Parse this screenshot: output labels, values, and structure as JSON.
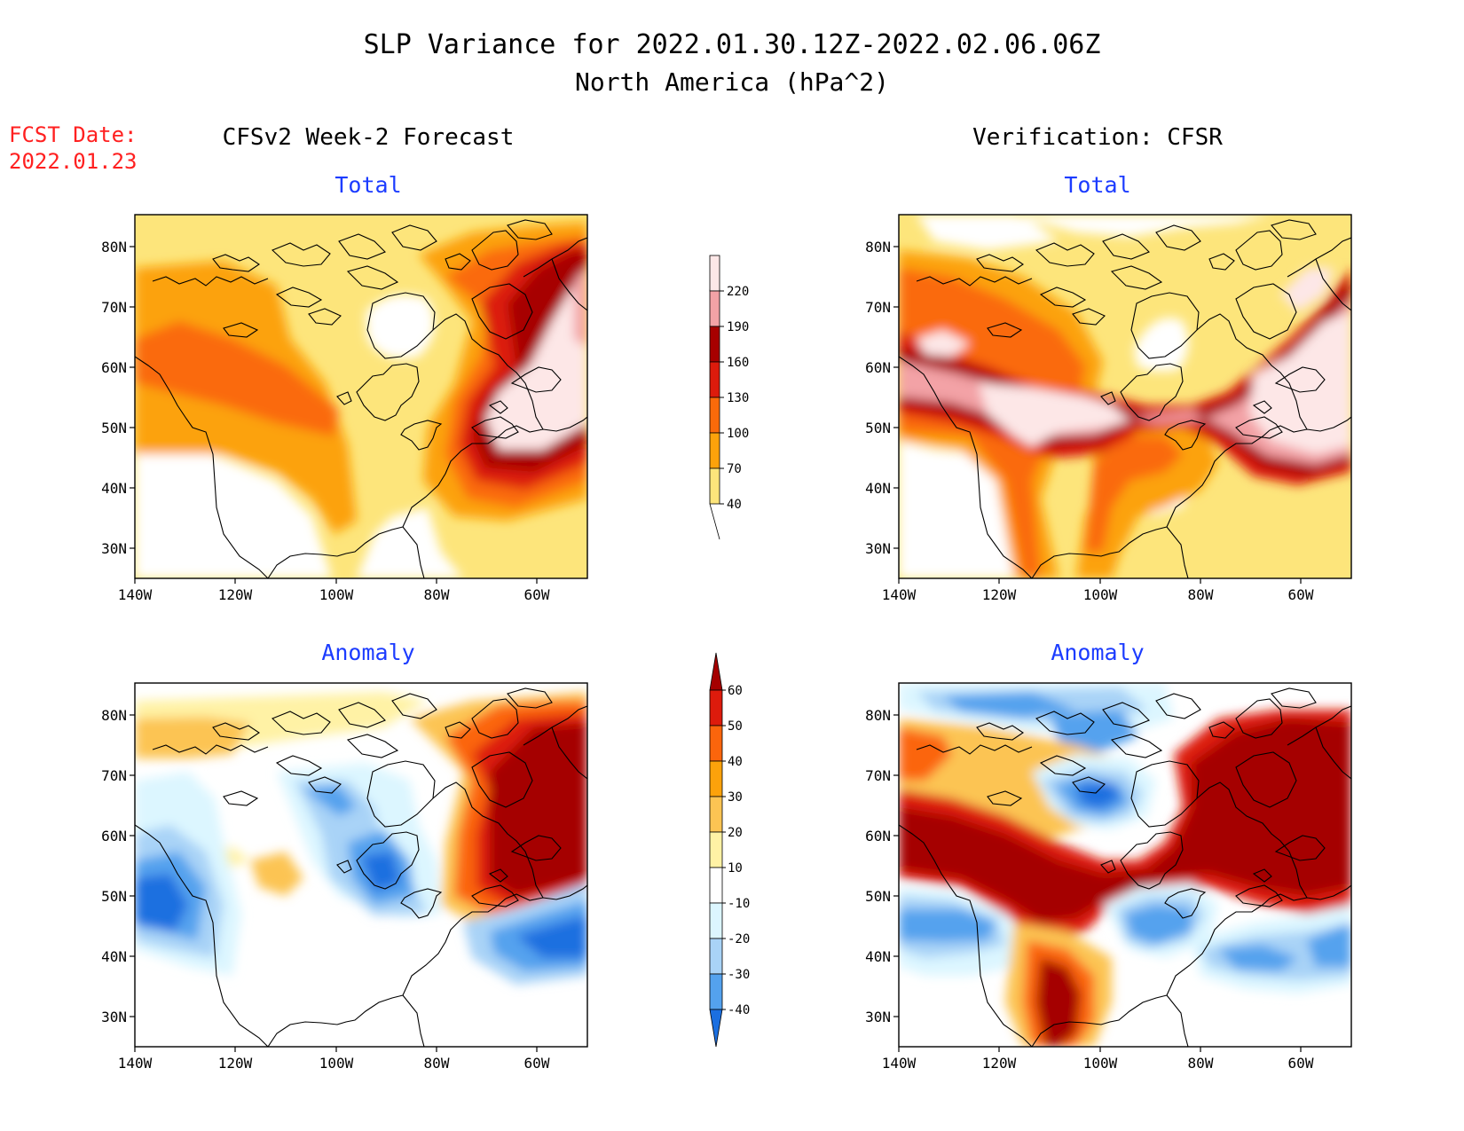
{
  "title_line1": "SLP Variance for 2022.01.30.12Z-2022.02.06.06Z",
  "title_line2": "North America (hPa^2)",
  "fcst_date_label": "FCST Date:",
  "fcst_date_value": "2022.01.23",
  "left_column_title": "CFSv2 Week-2 Forecast",
  "right_column_title": "Verification: CFSR",
  "panel_titles": {
    "top": "Total",
    "bottom": "Anomaly"
  },
  "lat_ticks": [
    "80N",
    "70N",
    "60N",
    "50N",
    "40N",
    "30N"
  ],
  "lon_ticks": [
    "140W",
    "120W",
    "100W",
    "80W",
    "60W"
  ],
  "colorbar_total": {
    "labels": [
      "220",
      "190",
      "160",
      "130",
      "100",
      "70",
      "40"
    ],
    "colors": [
      "#fde7e7",
      "#f3a2a6",
      "#a70000",
      "#dc1b0c",
      "#fa6a0a",
      "#fca20b",
      "#fde57b"
    ]
  },
  "colorbar_anomaly": {
    "labels": [
      "60",
      "50",
      "40",
      "30",
      "20",
      "10",
      "-10",
      "-20",
      "-30",
      "-40"
    ],
    "colors": [
      "#a50000",
      "#dd1b0c",
      "#fb650c",
      "#fca20b",
      "#fcc453",
      "#fff2a5",
      "#ffffff",
      "#dcf6ff",
      "#a9d3f7",
      "#54a2ee",
      "#1b6fe0"
    ]
  },
  "colors": {
    "title": "#000000",
    "fcst": "#ff2020",
    "panel_title": "#1c3cff"
  }
}
